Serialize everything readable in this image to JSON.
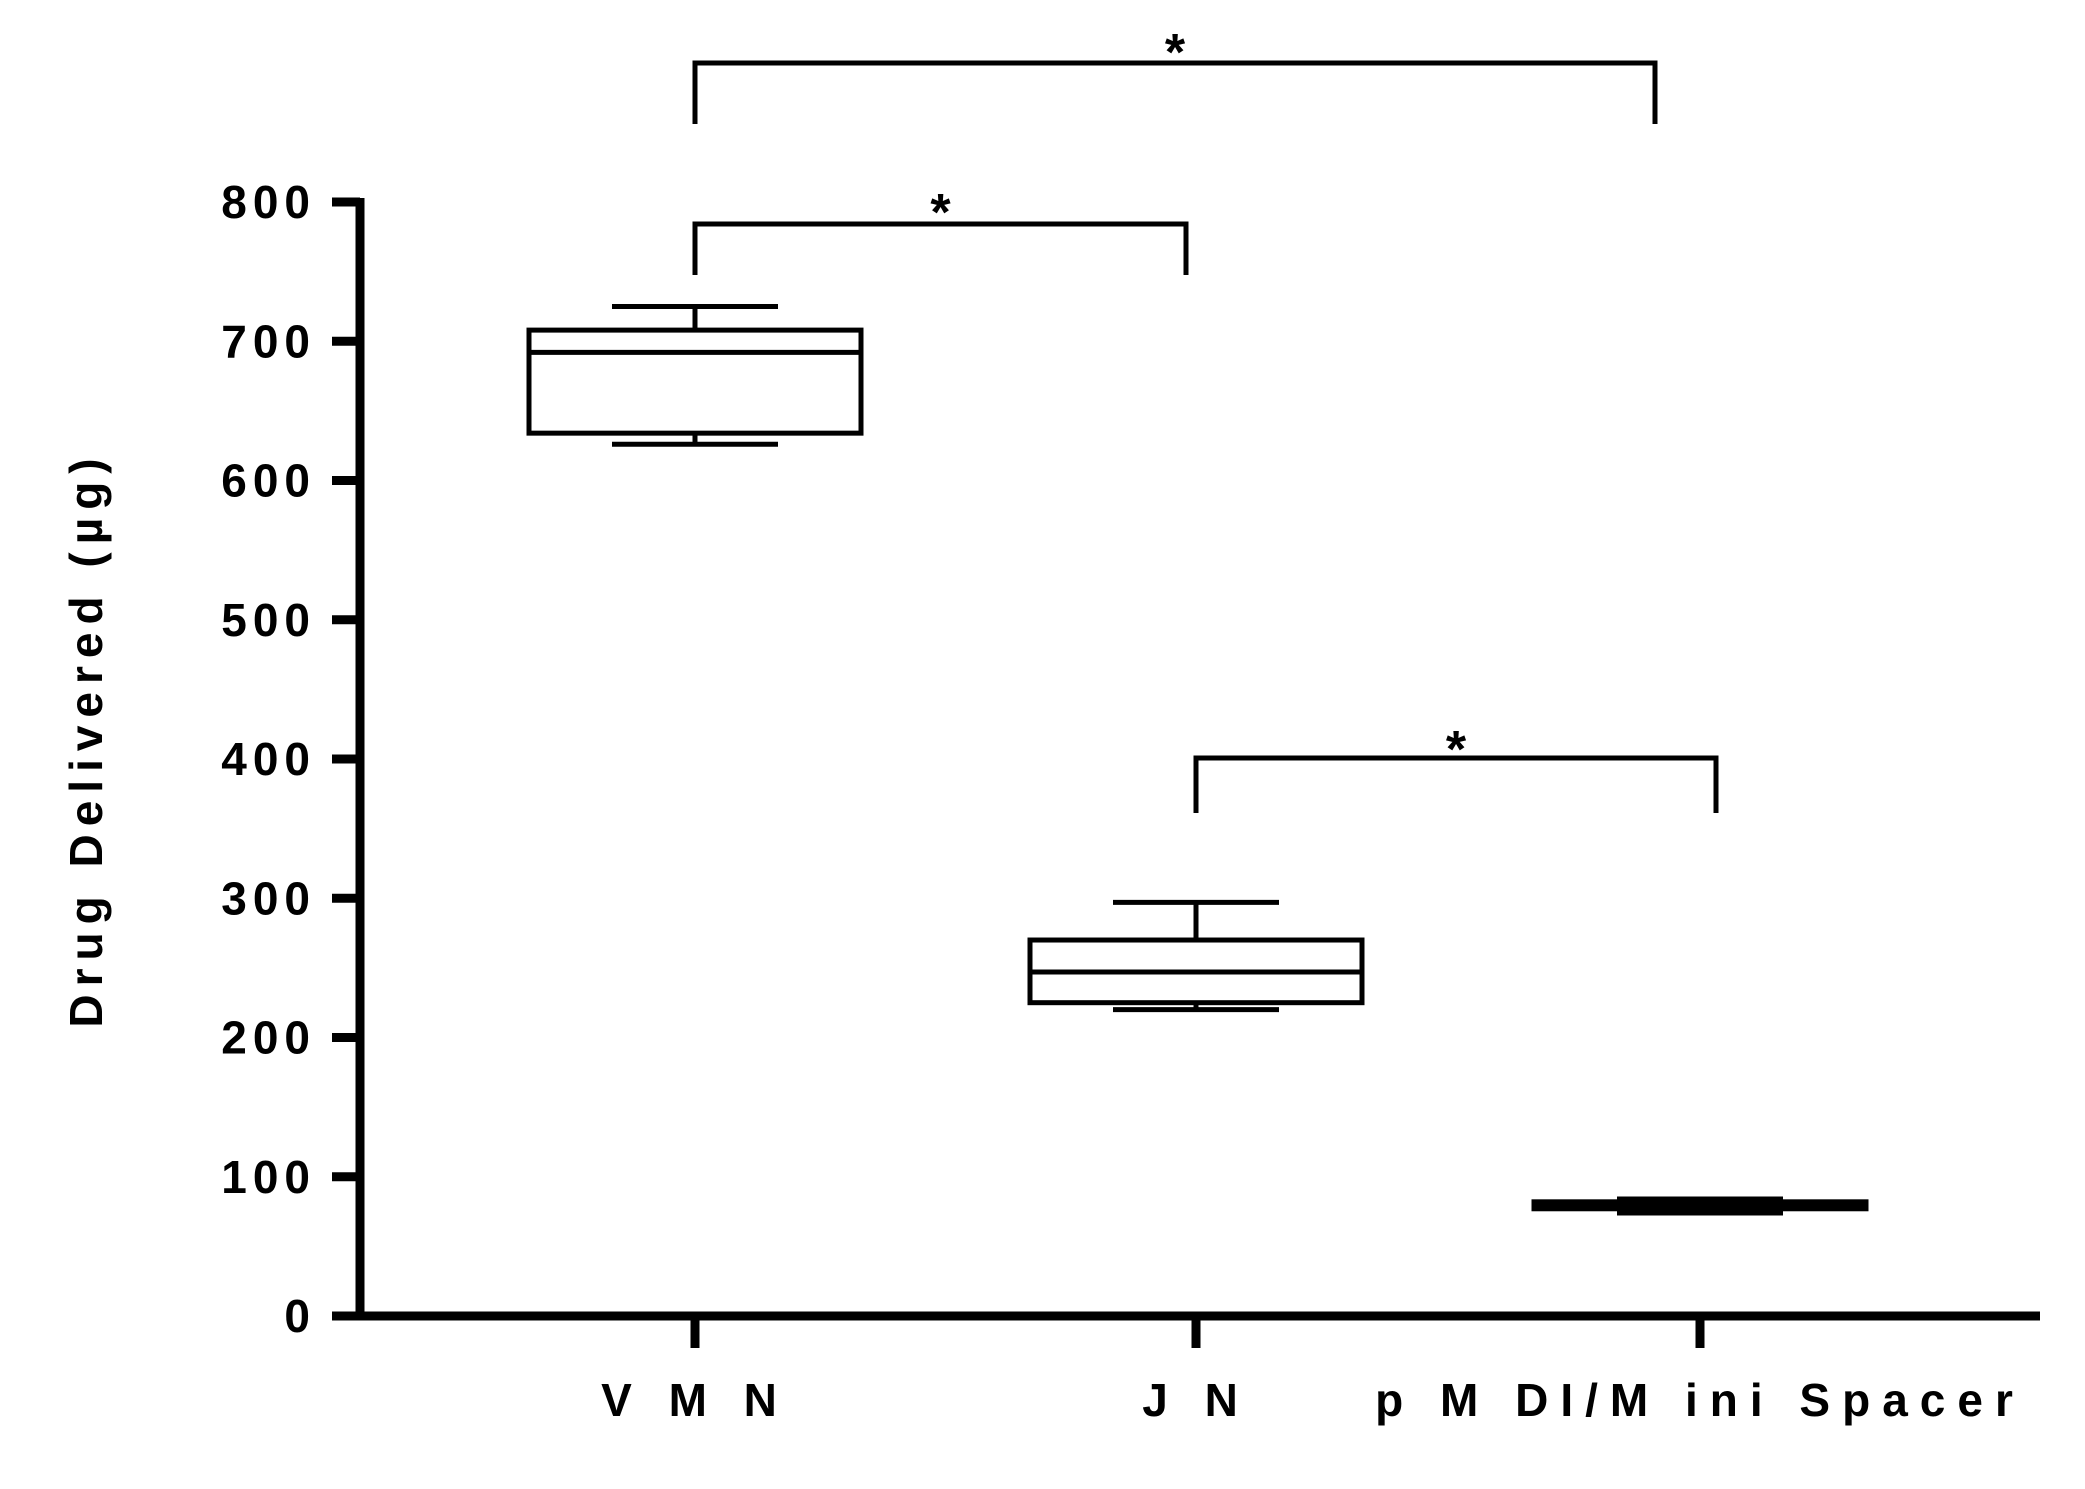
{
  "chart_data": {
    "type": "box",
    "title": "",
    "ylabel": "Drug Delivered (µg)",
    "xlabel": "",
    "ylim": [
      0,
      800
    ],
    "yticks": [
      "0",
      "100",
      "200",
      "300",
      "400",
      "500",
      "600",
      "700",
      "800"
    ],
    "categories": [
      "V M N",
      "J N",
      "p M DI/M ini Spacer"
    ],
    "boxes": [
      {
        "min": 626,
        "q1": 634,
        "median": 692,
        "q3": 708,
        "max": 725
      },
      {
        "min": 220,
        "q1": 225,
        "median": 247,
        "q3": 270,
        "max": 297
      },
      {
        "min": 74,
        "q1": 77,
        "median": 80,
        "q3": 82,
        "max": 84
      }
    ],
    "significance": [
      {
        "from": 0,
        "to": 2,
        "label": "*"
      },
      {
        "from": 0,
        "to": 1,
        "label": "*"
      },
      {
        "from": 1,
        "to": 2,
        "label": "*"
      }
    ]
  }
}
